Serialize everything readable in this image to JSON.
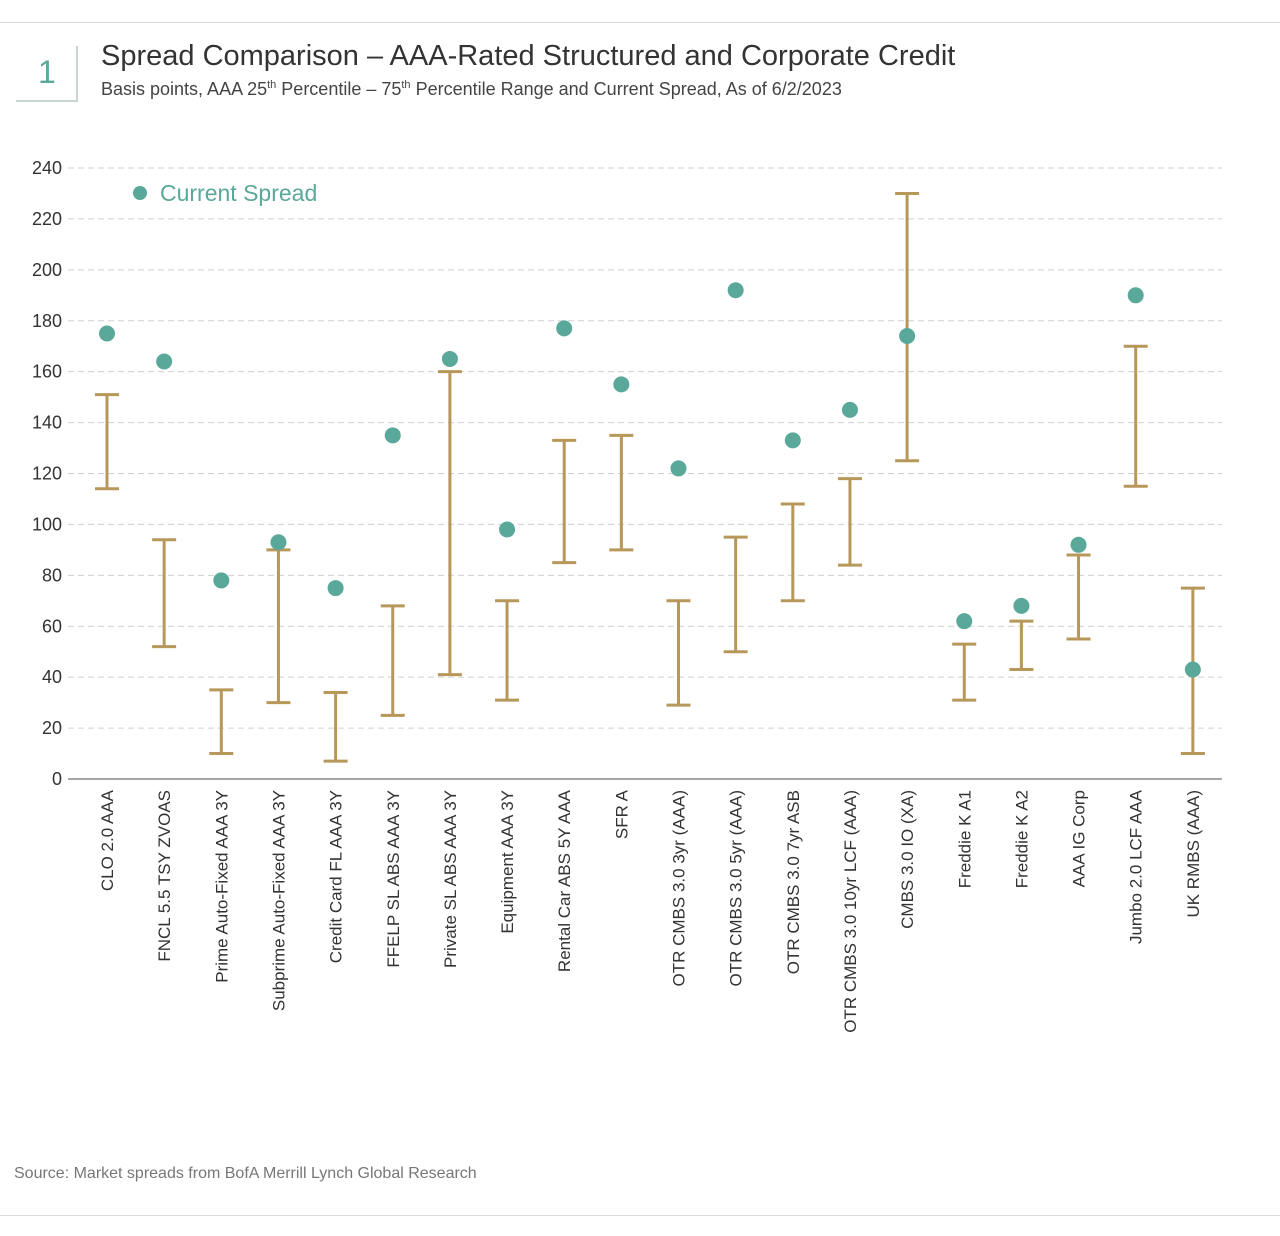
{
  "header": {
    "badge": "1",
    "title": "Spread Comparison – AAA-Rated Structured and Corporate Credit",
    "subtitle": "Basis points, AAA 25th Percentile – 75th Percentile Range and Current Spread, As of 6/2/2023"
  },
  "source": "Source: Market spreads from BofA Merrill Lynch Global Research",
  "colors": {
    "dot": "#5aa89a",
    "range": "#b8975a",
    "grid": "#d0d0d0",
    "axis": "#888888"
  },
  "chart_data": {
    "type": "range-and-dot",
    "ylim": [
      0,
      240
    ],
    "yticks": [
      0,
      20,
      40,
      60,
      80,
      100,
      120,
      140,
      160,
      180,
      200,
      220,
      240
    ],
    "grid": true,
    "legend": {
      "placement": "top-left",
      "label": "Current Spread"
    },
    "categories": [
      "CLO 2.0 AAA",
      "FNCL 5.5 TSY ZVOAS",
      "Prime Auto-Fixed AAA 3Y",
      "Subprime Auto-Fixed AAA 3Y",
      "Credit Card FL AAA 3Y",
      "FFELP SL ABS AAA 3Y",
      "Private SL ABS AAA 3Y",
      "Equipment AAA 3Y",
      "Rental Car ABS 5Y AAA",
      "SFR A",
      "OTR CMBS 3.0 3yr (AAA)",
      "OTR CMBS 3.0 5yr (AAA)",
      "OTR CMBS 3.0 7yr ASB",
      "OTR CMBS 3.0 10yr LCF (AAA)",
      "CMBS 3.0 IO (XA)",
      "Freddie K A1",
      "Freddie K A2",
      "AAA IG Corp",
      "Jumbo 2.0 LCF AAA",
      "UK RMBS (AAA)"
    ],
    "p25": [
      114,
      52,
      10,
      30,
      7,
      25,
      41,
      31,
      85,
      90,
      29,
      50,
      70,
      84,
      125,
      31,
      43,
      55,
      115,
      10
    ],
    "p75": [
      151,
      94,
      35,
      90,
      34,
      68,
      160,
      70,
      133,
      135,
      70,
      95,
      108,
      118,
      230,
      53,
      62,
      88,
      170,
      75
    ],
    "current": [
      175,
      164,
      78,
      93,
      75,
      135,
      165,
      98,
      177,
      155,
      122,
      192,
      133,
      145,
      174,
      62,
      68,
      92,
      190,
      43
    ]
  }
}
